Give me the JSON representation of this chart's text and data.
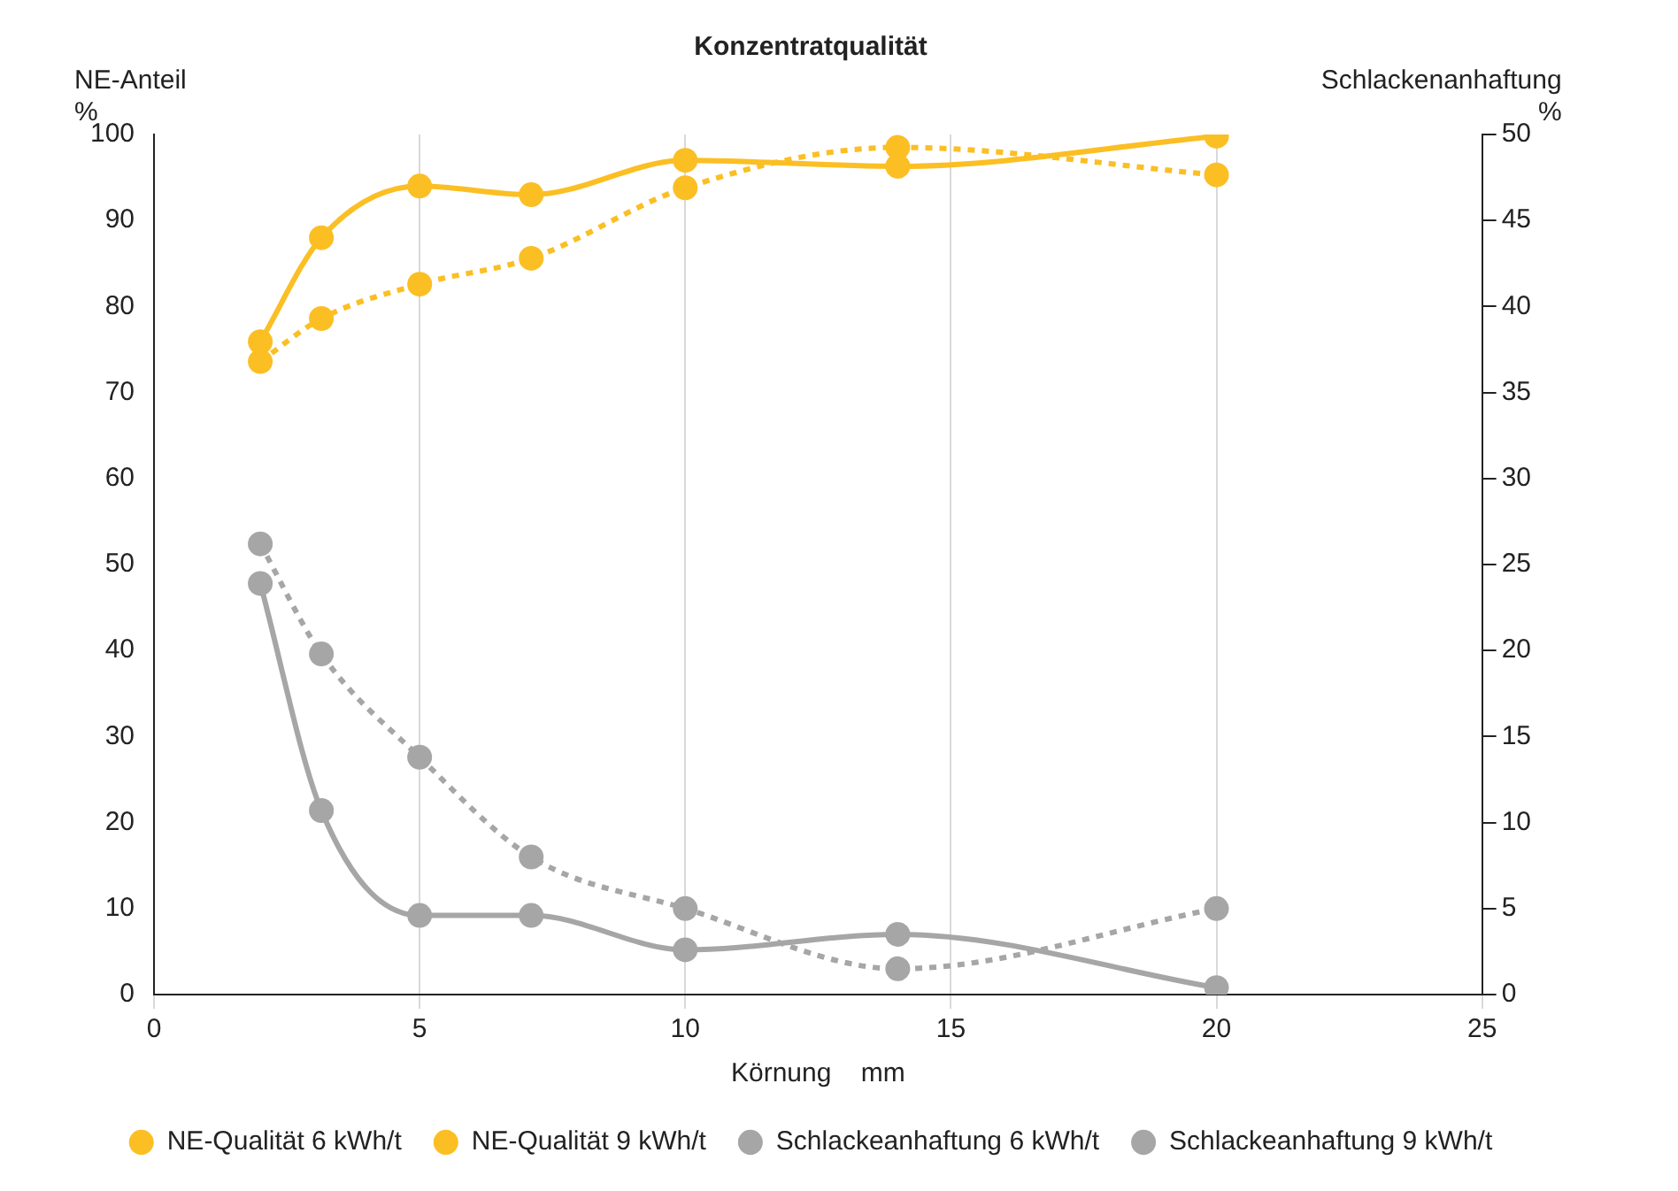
{
  "chart_data": {
    "type": "line",
    "title": "Konzentratqualität",
    "xlabel": "Körnung    mm",
    "ylabel": "NE-Anteil %",
    "y2label": "Schlackenanhaftung %",
    "xlim": [
      0,
      25
    ],
    "xticks": [
      0,
      5,
      10,
      15,
      20,
      25
    ],
    "ylim": [
      0,
      100
    ],
    "yticks": [
      0,
      10,
      20,
      30,
      40,
      50,
      60,
      70,
      80,
      90,
      100
    ],
    "y2lim": [
      0,
      50
    ],
    "y2ticks": [
      0,
      5,
      10,
      15,
      20,
      25,
      30,
      35,
      40,
      45,
      50
    ],
    "grid": "x",
    "legend": "bottom",
    "marker": "circle",
    "series": [
      {
        "name": "NE-Qualität 6 kWh/t",
        "color": "#fbbf24",
        "line_style": "dashed",
        "x": [
          2,
          3.15,
          5,
          7.1,
          10,
          14,
          20
        ],
        "values": [
          73.6,
          78.6,
          82.6,
          85.6,
          93.8,
          98.5,
          95.3
        ]
      },
      {
        "name": "NE-Qualität 9 kWh/t",
        "color": "#fbbf24",
        "line_style": "solid",
        "x": [
          2,
          3.15,
          5,
          7.1,
          10,
          14,
          20
        ],
        "values": [
          75.9,
          88,
          94,
          93,
          97,
          96.3,
          99.8
        ]
      },
      {
        "name": "Schlackeanhaftung 6 kWh/t",
        "color": "#a6a6a6",
        "line_style": "dashed",
        "axis": "y2",
        "x": [
          2,
          3.15,
          5,
          7.1,
          10,
          14,
          20
        ],
        "values": [
          26.2,
          19.8,
          13.8,
          8,
          5,
          1.5,
          5
        ]
      },
      {
        "name": "Schlackeanhaftung 9 kWh/t",
        "color": "#a6a6a6",
        "line_style": "solid",
        "axis": "y2",
        "x": [
          2,
          3.15,
          5,
          7.1,
          10,
          14,
          20
        ],
        "values": [
          23.9,
          10.7,
          4.6,
          4.6,
          2.6,
          3.5,
          0.4
        ]
      }
    ]
  }
}
